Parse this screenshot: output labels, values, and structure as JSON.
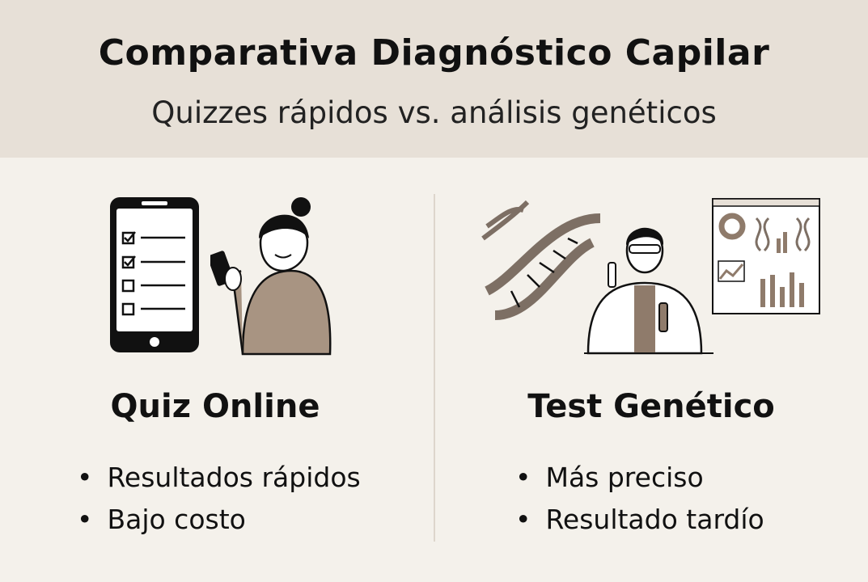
{
  "header": {
    "title": "Comparativa Diagnóstico Capilar",
    "subtitle": "Quizzes rápidos vs. análisis genéticos"
  },
  "left": {
    "heading": "Quiz Online",
    "bullets": [
      "Resultados rápidos",
      "Bajo costo"
    ],
    "illustration": "woman-with-phone-quiz-icon"
  },
  "right": {
    "heading": "Test Genético",
    "bullets": [
      "Más preciso",
      "Resultado tardío"
    ],
    "illustration": "scientist-dna-lab-icon"
  },
  "colors": {
    "header_bg": "#e7e0d7",
    "body_bg": "#f4f1eb",
    "accent": "#a89482"
  }
}
